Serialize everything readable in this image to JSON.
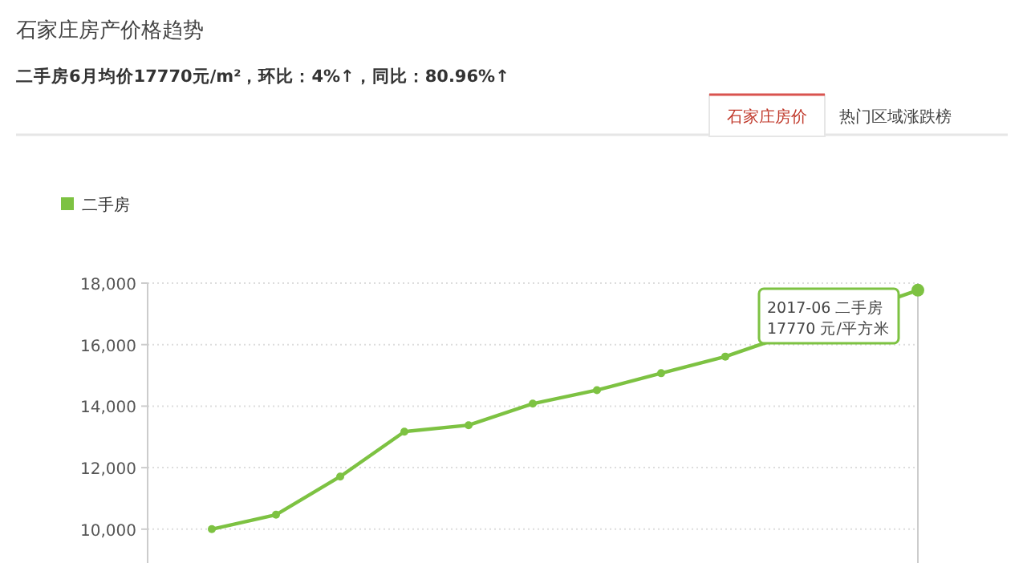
{
  "chart_data": {
    "type": "line",
    "title": "石家庄房产价格趋势",
    "subtitle": "二手房6月均价17770元/m²，环比：4%↑，同比：80.96%↑",
    "categories": [
      null,
      null,
      null,
      null,
      null,
      null,
      null,
      null,
      null,
      null,
      null,
      null
    ],
    "series": [
      {
        "name": "二手房",
        "color": "#7dc242",
        "values": [
          10000,
          10470,
          11710,
          13170,
          13380,
          14080,
          14520,
          15070,
          15610,
          null,
          null,
          17770
        ]
      }
    ],
    "ylim": [
      8900,
      18000
    ],
    "yticks": [
      {
        "value": 10000,
        "label": "10,000"
      },
      {
        "value": 12000,
        "label": "12,000"
      },
      {
        "value": 14000,
        "label": "14,000"
      },
      {
        "value": 16000,
        "label": "16,000"
      },
      {
        "value": 18000,
        "label": "18,000"
      }
    ],
    "grid": "y",
    "legend": "top left",
    "marker": "circle",
    "line_style": "solid",
    "annotations": [
      "石家庄房价",
      "热门区域涨跌榜",
      "2017-06 二手房",
      "17770 元/平方米"
    ]
  }
}
